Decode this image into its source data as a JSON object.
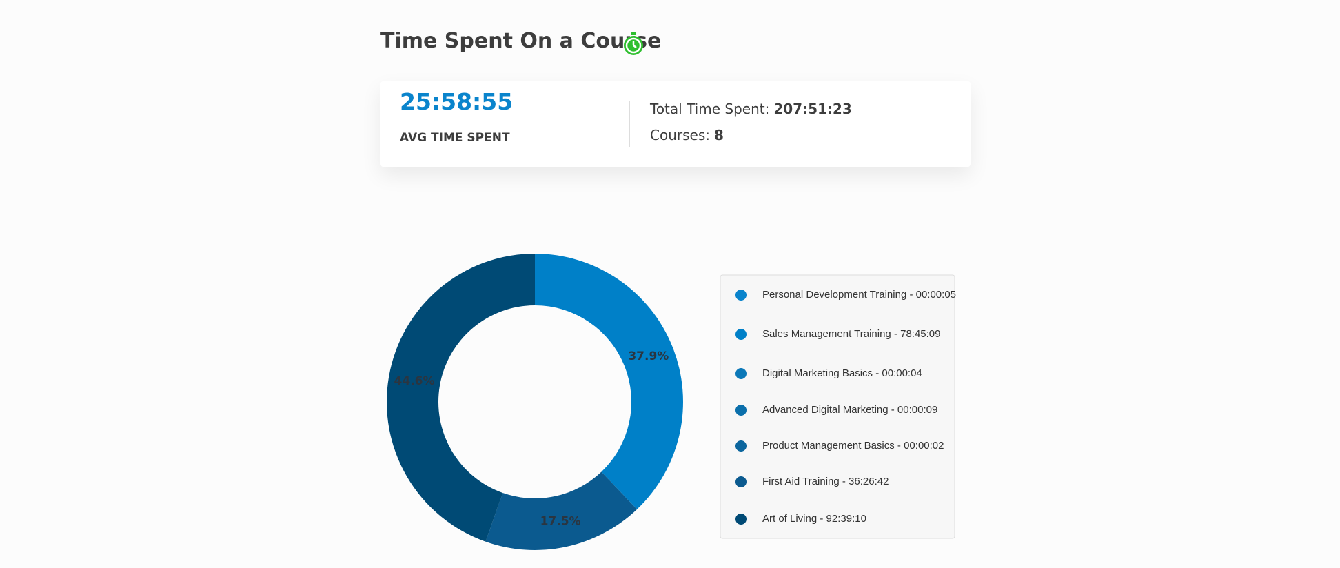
{
  "header": {
    "title": "Time Spent On a Course"
  },
  "summary": {
    "avg_value": "25:58:55",
    "avg_label": "AVG TIME SPENT",
    "total_label": "Total Time Spent:",
    "total_value": "207:51:23",
    "courses_label": "Courses:",
    "courses_value": 8
  },
  "chart_data": {
    "type": "pie",
    "donut": true,
    "categories": [
      "Personal Development Training - 00:00:05",
      "Sales Management Training - 78:45:09",
      "Digital Marketing Basics - 00:00:04",
      "Advanced Digital Marketing - 00:00:09",
      "Product Management Basics - 00:00:02",
      "First Aid Training - 36:26:42",
      "Art of Living - 92:39:10"
    ],
    "values": [
      0.0007,
      37.9,
      0.0005,
      0.0012,
      0.0003,
      17.5,
      44.6
    ],
    "value_labels": [
      null,
      "37.9%",
      null,
      null,
      null,
      "17.5%",
      "44.6%"
    ],
    "colors": [
      "#0a84cc",
      "#0080c8",
      "#0b78b8",
      "#0b6fab",
      "#0c669e",
      "#0b5a8f",
      "#004a75"
    ]
  }
}
